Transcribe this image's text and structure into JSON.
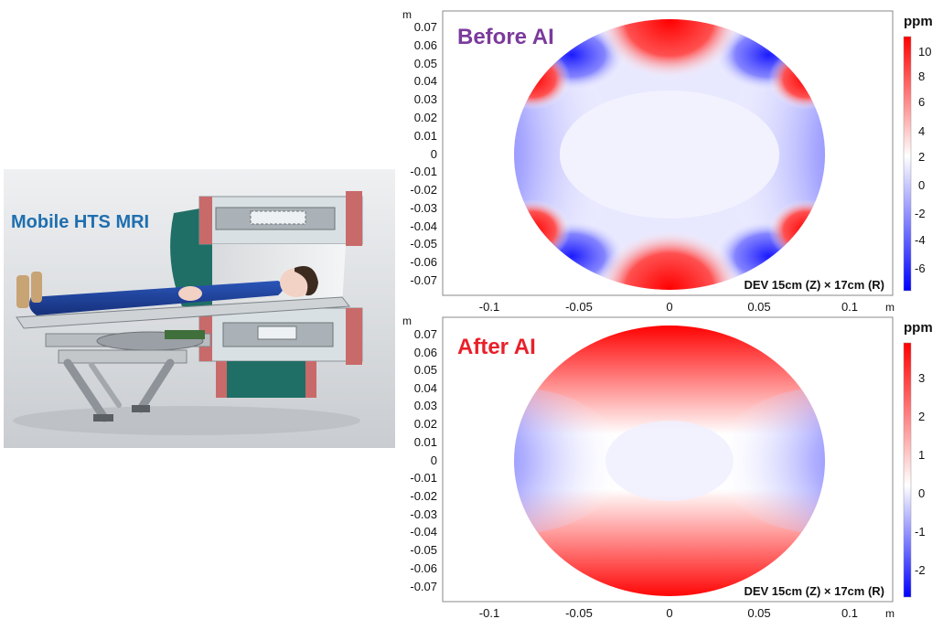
{
  "illustration": {
    "title": "Mobile HTS MRI"
  },
  "panels": [
    {
      "id": "before",
      "title": "Before AI",
      "title_color": "#7b3a9c",
      "axis_unit": "m",
      "y_ticks": [
        "0.07",
        "0.06",
        "0.05",
        "0.04",
        "0.03",
        "0.02",
        "0.01",
        "0",
        "-0.01",
        "-0.02",
        "-0.03",
        "-0.04",
        "-0.05",
        "-0.06",
        "-0.07"
      ],
      "x_ticks": [
        "-0.1",
        "-0.05",
        "0",
        "0.05",
        "0.1"
      ],
      "dev_label": "DEV 15cm (Z) × 17cm (R)",
      "colorbar_unit": "ppm",
      "colorbar_ticks": [
        "10",
        "8",
        "6",
        "4",
        "2",
        "0",
        "-2",
        "-4",
        "-6"
      ]
    },
    {
      "id": "after",
      "title": "After AI",
      "title_color": "#e8202a",
      "axis_unit": "m",
      "y_ticks": [
        "0.07",
        "0.06",
        "0.05",
        "0.04",
        "0.03",
        "0.02",
        "0.01",
        "0",
        "-0.01",
        "-0.02",
        "-0.03",
        "-0.04",
        "-0.05",
        "-0.06",
        "-0.07"
      ],
      "x_ticks": [
        "-0.1",
        "-0.05",
        "0",
        "0.05",
        "0.1"
      ],
      "dev_label": "DEV 15cm (Z) × 17cm (R)",
      "colorbar_unit": "ppm",
      "colorbar_ticks": [
        "3",
        "2",
        "1",
        "0",
        "-1",
        "-2"
      ]
    }
  ],
  "colors": {
    "positive": "#e01818",
    "negative": "#1018e0",
    "neutral": "#ffffff"
  }
}
